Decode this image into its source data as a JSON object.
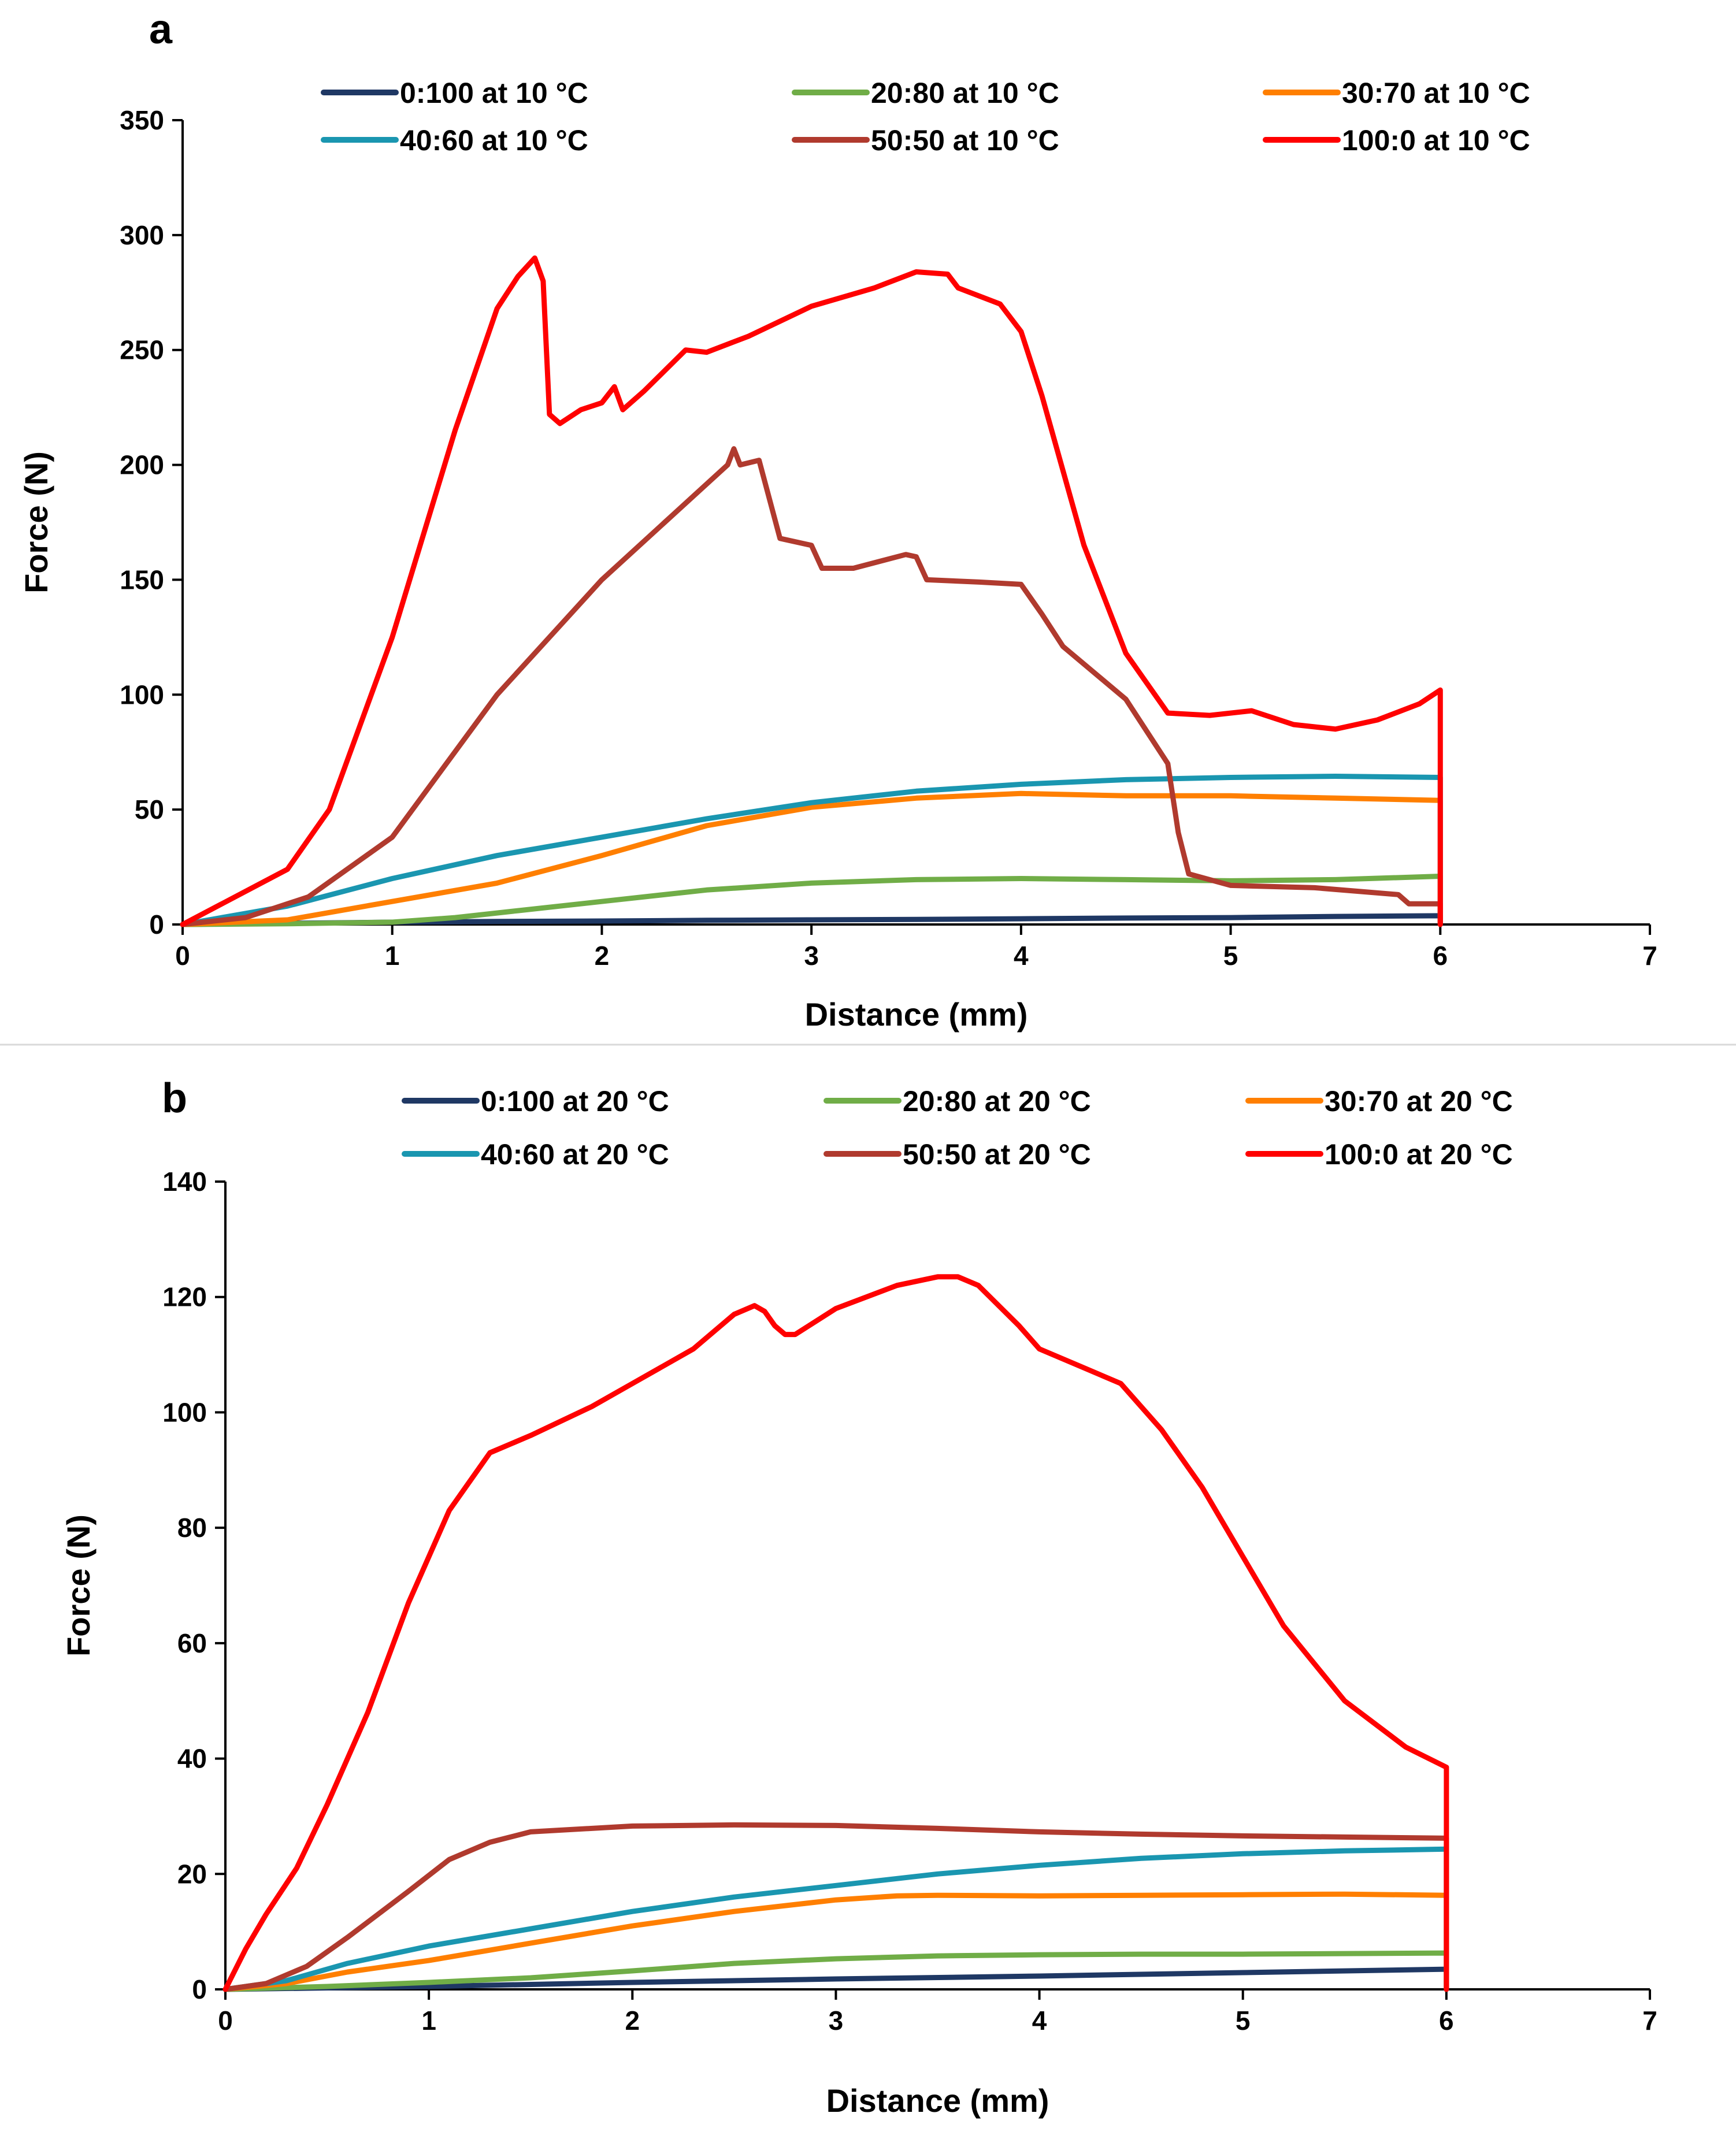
{
  "chart_data": [
    {
      "type": "line",
      "panel_label": "a",
      "title": "",
      "xlabel": "Distance (mm)",
      "ylabel": "Force (N)",
      "xlim": [
        0,
        7
      ],
      "ylim": [
        0,
        350
      ],
      "xticks": [
        0,
        1,
        2,
        3,
        4,
        5,
        6,
        7
      ],
      "yticks": [
        0,
        50,
        100,
        150,
        200,
        250,
        300,
        350
      ],
      "grid": false,
      "legend_position": "top",
      "series": [
        {
          "name": "0:100 at 10 °C",
          "color": "#1f3864",
          "points": [
            [
              0,
              0
            ],
            [
              0.5,
              0.5
            ],
            [
              1,
              1
            ],
            [
              1.5,
              1.3
            ],
            [
              2,
              1.5
            ],
            [
              2.5,
              1.8
            ],
            [
              3,
              2
            ],
            [
              3.5,
              2.2
            ],
            [
              4,
              2.5
            ],
            [
              4.5,
              2.8
            ],
            [
              5,
              3
            ],
            [
              5.5,
              3.5
            ],
            [
              6,
              3.8
            ],
            [
              6,
              0
            ]
          ]
        },
        {
          "name": "20:80 at 10 °C",
          "color": "#70ad47",
          "points": [
            [
              0,
              0
            ],
            [
              0.5,
              0.3
            ],
            [
              1,
              1
            ],
            [
              1.3,
              3
            ],
            [
              1.6,
              6
            ],
            [
              2,
              10
            ],
            [
              2.5,
              15
            ],
            [
              3,
              18
            ],
            [
              3.5,
              19.5
            ],
            [
              4,
              20
            ],
            [
              4.5,
              19.5
            ],
            [
              5,
              19
            ],
            [
              5.5,
              19.5
            ],
            [
              6,
              21
            ],
            [
              6,
              0
            ]
          ]
        },
        {
          "name": "30:70 at 10 °C",
          "color": "#ff7f00",
          "points": [
            [
              0,
              0
            ],
            [
              0.5,
              2
            ],
            [
              1,
              10
            ],
            [
              1.5,
              18
            ],
            [
              2,
              30
            ],
            [
              2.5,
              43
            ],
            [
              3,
              51
            ],
            [
              3.5,
              55
            ],
            [
              4,
              57
            ],
            [
              4.5,
              56
            ],
            [
              5,
              56
            ],
            [
              5.5,
              55
            ],
            [
              6,
              54
            ],
            [
              6,
              0
            ]
          ]
        },
        {
          "name": "40:60 at 10 °C",
          "color": "#1a96b0",
          "points": [
            [
              0,
              0
            ],
            [
              0.5,
              8
            ],
            [
              1,
              20
            ],
            [
              1.5,
              30
            ],
            [
              2,
              38
            ],
            [
              2.5,
              46
            ],
            [
              3,
              53
            ],
            [
              3.5,
              58
            ],
            [
              4,
              61
            ],
            [
              4.5,
              63
            ],
            [
              5,
              64
            ],
            [
              5.5,
              64.5
            ],
            [
              6,
              64
            ],
            [
              6,
              0
            ]
          ]
        },
        {
          "name": "50:50 at 10 °C",
          "color": "#b03a2e",
          "points": [
            [
              0,
              0
            ],
            [
              0.3,
              3
            ],
            [
              0.6,
              12
            ],
            [
              1,
              38
            ],
            [
              1.5,
              100
            ],
            [
              2,
              150
            ],
            [
              2.3,
              175
            ],
            [
              2.6,
              200
            ],
            [
              2.63,
              207
            ],
            [
              2.66,
              200
            ],
            [
              2.75,
              202
            ],
            [
              2.85,
              168
            ],
            [
              3,
              165
            ],
            [
              3.05,
              155
            ],
            [
              3.2,
              155
            ],
            [
              3.45,
              161
            ],
            [
              3.5,
              160
            ],
            [
              3.55,
              150
            ],
            [
              3.8,
              149
            ],
            [
              4,
              148
            ],
            [
              4.1,
              135
            ],
            [
              4.2,
              121
            ],
            [
              4.5,
              98
            ],
            [
              4.7,
              70
            ],
            [
              4.75,
              40
            ],
            [
              4.8,
              22
            ],
            [
              5,
              17
            ],
            [
              5.4,
              16
            ],
            [
              5.8,
              13
            ],
            [
              5.85,
              9
            ],
            [
              6,
              9
            ],
            [
              6,
              0
            ]
          ]
        },
        {
          "name": "100:0 at 10 °C",
          "color": "#ff0000",
          "points": [
            [
              0,
              0
            ],
            [
              0.5,
              24
            ],
            [
              0.7,
              50
            ],
            [
              1,
              125
            ],
            [
              1.3,
              215
            ],
            [
              1.5,
              268
            ],
            [
              1.6,
              282
            ],
            [
              1.68,
              290
            ],
            [
              1.72,
              280
            ],
            [
              1.75,
              222
            ],
            [
              1.8,
              218
            ],
            [
              1.9,
              224
            ],
            [
              2,
              227
            ],
            [
              2.06,
              234
            ],
            [
              2.1,
              224
            ],
            [
              2.2,
              232
            ],
            [
              2.4,
              250
            ],
            [
              2.5,
              249
            ],
            [
              2.7,
              256
            ],
            [
              3,
              269
            ],
            [
              3.3,
              277
            ],
            [
              3.5,
              284
            ],
            [
              3.65,
              283
            ],
            [
              3.7,
              277
            ],
            [
              3.9,
              270
            ],
            [
              4,
              258
            ],
            [
              4.1,
              230
            ],
            [
              4.3,
              165
            ],
            [
              4.5,
              118
            ],
            [
              4.7,
              92
            ],
            [
              4.9,
              91
            ],
            [
              5.1,
              93
            ],
            [
              5.3,
              87
            ],
            [
              5.5,
              85
            ],
            [
              5.7,
              89
            ],
            [
              5.9,
              96
            ],
            [
              6,
              102
            ],
            [
              6,
              0
            ]
          ]
        }
      ]
    },
    {
      "type": "line",
      "panel_label": "b",
      "title": "",
      "xlabel": "Distance (mm)",
      "ylabel": "Force (N)",
      "xlim": [
        0,
        7
      ],
      "ylim": [
        0,
        140
      ],
      "xticks": [
        0,
        1,
        2,
        3,
        4,
        5,
        6,
        7
      ],
      "yticks": [
        0,
        20,
        40,
        60,
        80,
        100,
        120,
        140
      ],
      "grid": false,
      "legend_position": "top",
      "series": [
        {
          "name": "0:100 at 20 °C",
          "color": "#1f3864",
          "points": [
            [
              0,
              0
            ],
            [
              1,
              0.5
            ],
            [
              2,
              1.2
            ],
            [
              3,
              1.8
            ],
            [
              4,
              2.3
            ],
            [
              5,
              2.9
            ],
            [
              6,
              3.5
            ],
            [
              6,
              0
            ]
          ]
        },
        {
          "name": "20:80 at 20 °C",
          "color": "#70ad47",
          "points": [
            [
              0,
              0
            ],
            [
              0.5,
              0.5
            ],
            [
              1,
              1.2
            ],
            [
              1.5,
              2
            ],
            [
              2,
              3.2
            ],
            [
              2.5,
              4.5
            ],
            [
              3,
              5.3
            ],
            [
              3.5,
              5.8
            ],
            [
              4,
              6
            ],
            [
              4.5,
              6.1
            ],
            [
              5,
              6.1
            ],
            [
              5.5,
              6.2
            ],
            [
              6,
              6.3
            ],
            [
              6,
              0
            ]
          ]
        },
        {
          "name": "30:70 at 20 °C",
          "color": "#ff7f00",
          "points": [
            [
              0,
              0
            ],
            [
              0.3,
              1
            ],
            [
              0.6,
              3
            ],
            [
              1,
              5
            ],
            [
              1.5,
              8
            ],
            [
              2,
              11
            ],
            [
              2.5,
              13.5
            ],
            [
              3,
              15.5
            ],
            [
              3.3,
              16.2
            ],
            [
              3.5,
              16.3
            ],
            [
              4,
              16.2
            ],
            [
              4.5,
              16.3
            ],
            [
              5,
              16.4
            ],
            [
              5.5,
              16.5
            ],
            [
              6,
              16.3
            ],
            [
              6,
              0
            ]
          ]
        },
        {
          "name": "40:60 at 20 °C",
          "color": "#1a96b0",
          "points": [
            [
              0,
              0
            ],
            [
              0.3,
              1.5
            ],
            [
              0.6,
              4.5
            ],
            [
              1,
              7.5
            ],
            [
              1.5,
              10.5
            ],
            [
              2,
              13.5
            ],
            [
              2.5,
              16
            ],
            [
              3,
              18
            ],
            [
              3.5,
              20
            ],
            [
              4,
              21.5
            ],
            [
              4.5,
              22.7
            ],
            [
              5,
              23.5
            ],
            [
              5.5,
              24
            ],
            [
              6,
              24.3
            ],
            [
              6,
              0
            ]
          ]
        },
        {
          "name": "50:50 at 20 °C",
          "color": "#b03a2e",
          "points": [
            [
              0,
              0
            ],
            [
              0.2,
              1
            ],
            [
              0.4,
              4
            ],
            [
              0.6,
              9
            ],
            [
              0.9,
              17
            ],
            [
              1.1,
              22.5
            ],
            [
              1.3,
              25.5
            ],
            [
              1.5,
              27.3
            ],
            [
              2,
              28.3
            ],
            [
              2.5,
              28.5
            ],
            [
              3,
              28.4
            ],
            [
              3.5,
              27.9
            ],
            [
              4,
              27.3
            ],
            [
              4.5,
              26.9
            ],
            [
              5,
              26.6
            ],
            [
              5.5,
              26.4
            ],
            [
              6,
              26.2
            ],
            [
              6,
              0
            ]
          ]
        },
        {
          "name": "100:0 at 20 °C",
          "color": "#ff0000",
          "points": [
            [
              0,
              0
            ],
            [
              0.1,
              7
            ],
            [
              0.2,
              13
            ],
            [
              0.35,
              21
            ],
            [
              0.5,
              32
            ],
            [
              0.7,
              48
            ],
            [
              0.9,
              67
            ],
            [
              1.1,
              83
            ],
            [
              1.3,
              93
            ],
            [
              1.5,
              96
            ],
            [
              1.8,
              101
            ],
            [
              2,
              105
            ],
            [
              2.3,
              111
            ],
            [
              2.5,
              117
            ],
            [
              2.6,
              118.5
            ],
            [
              2.65,
              117.5
            ],
            [
              2.7,
              115
            ],
            [
              2.75,
              113.5
            ],
            [
              2.8,
              113.5
            ],
            [
              3,
              118
            ],
            [
              3.3,
              122
            ],
            [
              3.5,
              123.5
            ],
            [
              3.6,
              123.5
            ],
            [
              3.7,
              122
            ],
            [
              3.9,
              115
            ],
            [
              4,
              111
            ],
            [
              4.2,
              108
            ],
            [
              4.4,
              105
            ],
            [
              4.6,
              97
            ],
            [
              4.8,
              87
            ],
            [
              5,
              75
            ],
            [
              5.2,
              63
            ],
            [
              5.5,
              50
            ],
            [
              5.8,
              42
            ],
            [
              6,
              38.5
            ],
            [
              6,
              0
            ]
          ]
        }
      ]
    }
  ]
}
